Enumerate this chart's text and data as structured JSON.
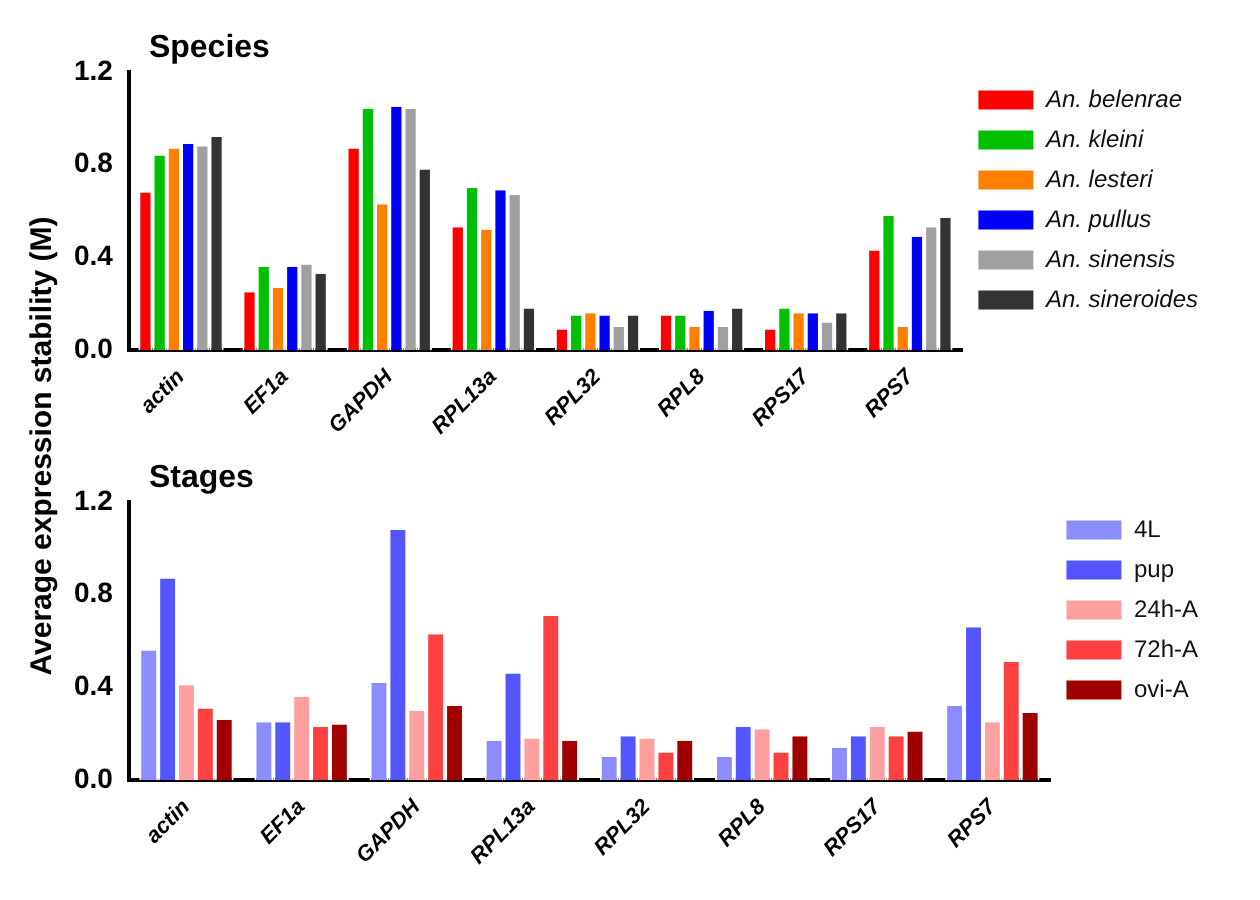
{
  "chart_data": [
    {
      "type": "bar",
      "title": "Species",
      "ylabel": "Average expression stability (M)",
      "categories": [
        "actin",
        "EF1a",
        "GAPDH",
        "RPL13a",
        "RPL32",
        "RPL8",
        "RPS17",
        "RPS7"
      ],
      "series": [
        {
          "name": "An. belenrae",
          "color": "#ff0000",
          "values": [
            0.68,
            0.25,
            0.87,
            0.53,
            0.09,
            0.15,
            0.09,
            0.43
          ]
        },
        {
          "name": "An. kleini",
          "color": "#00c000",
          "values": [
            0.84,
            0.36,
            1.04,
            0.7,
            0.15,
            0.15,
            0.18,
            0.58
          ]
        },
        {
          "name": "An. lesteri",
          "color": "#ff8000",
          "values": [
            0.87,
            0.27,
            0.63,
            0.52,
            0.16,
            0.1,
            0.16,
            0.1
          ]
        },
        {
          "name": "An. pullus",
          "color": "#0000ff",
          "values": [
            0.89,
            0.36,
            1.05,
            0.69,
            0.15,
            0.17,
            0.16,
            0.49
          ]
        },
        {
          "name": "An. sinensis",
          "color": "#a0a0a0",
          "values": [
            0.88,
            0.37,
            1.04,
            0.67,
            0.1,
            0.1,
            0.12,
            0.53
          ]
        },
        {
          "name": "An. sineroides",
          "color": "#333333",
          "values": [
            0.92,
            0.33,
            0.78,
            0.18,
            0.15,
            0.18,
            0.16,
            0.57
          ]
        }
      ],
      "ylim": [
        0,
        1.2
      ],
      "yticks": [
        {
          "value": 0,
          "label": "0.0"
        },
        0.4,
        0.8,
        1.2
      ],
      "legend": "right"
    },
    {
      "type": "bar",
      "title": "Stages",
      "categories": [
        "actin",
        "EF1a",
        "GAPDH",
        "RPL13a",
        "RPL32",
        "RPL8",
        "RPS17",
        "RPS7"
      ],
      "series": [
        {
          "name": "4L",
          "color": "#8c8cff",
          "values": [
            0.56,
            0.25,
            0.42,
            0.17,
            0.1,
            0.1,
            0.14,
            0.32
          ]
        },
        {
          "name": "pup",
          "color": "#5555ff",
          "values": [
            0.87,
            0.25,
            1.08,
            0.46,
            0.19,
            0.23,
            0.19,
            0.66
          ]
        },
        {
          "name": "24h-A",
          "color": "#ffa0a0",
          "values": [
            0.41,
            0.36,
            0.3,
            0.18,
            0.18,
            0.22,
            0.23,
            0.25
          ]
        },
        {
          "name": "72h-A",
          "color": "#ff4040",
          "values": [
            0.31,
            0.23,
            0.63,
            0.71,
            0.12,
            0.12,
            0.19,
            0.51
          ]
        },
        {
          "name": "ovi-A",
          "color": "#a00000",
          "values": [
            0.26,
            0.24,
            0.32,
            0.17,
            0.17,
            0.19,
            0.21,
            0.29
          ]
        }
      ],
      "ylim": [
        0,
        1.2
      ],
      "yticks": [
        {
          "value": 0,
          "label": "0.0"
        },
        0.4,
        0.8,
        1.2
      ],
      "legend": "right"
    }
  ]
}
